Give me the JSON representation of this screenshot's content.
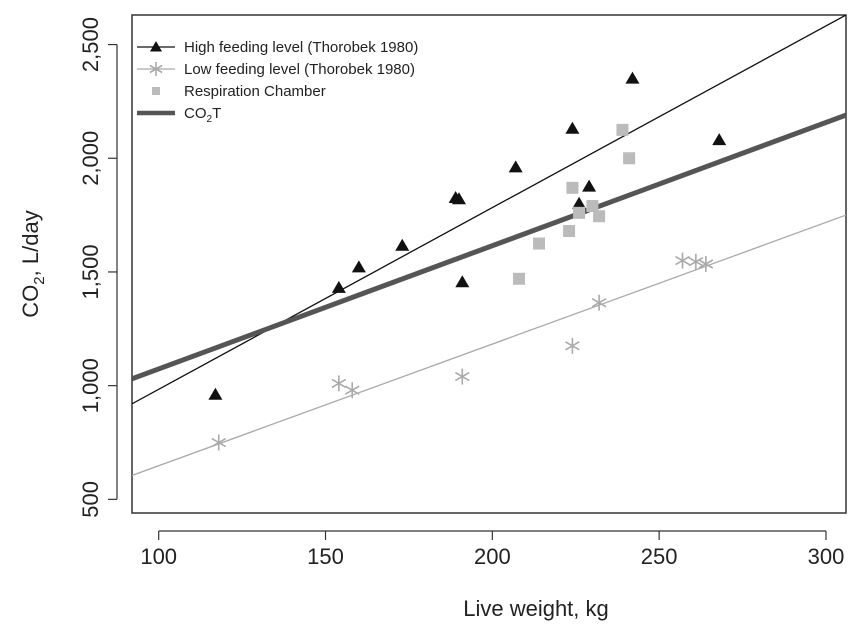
{
  "chart_data": {
    "type": "scatter",
    "title": "",
    "xlabel": "Live weight, kg",
    "ylabel_main": "CO",
    "ylabel_sub": "2",
    "ylabel_rest": ", L/day",
    "xlim": [
      92,
      306
    ],
    "ylim": [
      440,
      2630
    ],
    "x_ticks": [
      100,
      150,
      200,
      250,
      300
    ],
    "x_tick_labels": [
      "100",
      "150",
      "200",
      "250",
      "300"
    ],
    "y_ticks": [
      500,
      1000,
      1500,
      2000,
      2500
    ],
    "y_tick_labels": [
      "500",
      "1,000",
      "1,500",
      "2,000",
      "2,500"
    ],
    "grid": false,
    "legend_position": "top-left",
    "series": [
      {
        "name": "High feeding level (Thorobek 1980)",
        "marker": "triangle",
        "color": "#111111",
        "points": [
          [
            117,
            960
          ],
          [
            154,
            1430
          ],
          [
            160,
            1520
          ],
          [
            173,
            1615
          ],
          [
            189,
            1825
          ],
          [
            190,
            1820
          ],
          [
            191,
            1455
          ],
          [
            207,
            1960
          ],
          [
            224,
            2130
          ],
          [
            226,
            1800
          ],
          [
            229,
            1875
          ],
          [
            242,
            2350
          ],
          [
            268,
            2080
          ]
        ],
        "fit_line": {
          "color": "#111111",
          "endpoints": [
            [
              92,
              920
            ],
            [
              306,
              2630
            ]
          ]
        }
      },
      {
        "name": "Low feeding level (Thorobek 1980)",
        "marker": "asterisk",
        "color": "#aaaaaa",
        "points": [
          [
            118,
            750
          ],
          [
            154,
            1010
          ],
          [
            158,
            980
          ],
          [
            191,
            1040
          ],
          [
            224,
            1175
          ],
          [
            232,
            1365
          ],
          [
            257,
            1550
          ],
          [
            261,
            1545
          ],
          [
            264,
            1535
          ]
        ],
        "fit_line": {
          "color": "#aaaaaa",
          "endpoints": [
            [
              92,
              605
            ],
            [
              306,
              1750
            ]
          ]
        }
      },
      {
        "name": "Respiration Chamber",
        "marker": "square",
        "color": "#bbbbbb",
        "points": [
          [
            208,
            1470
          ],
          [
            214,
            1625
          ],
          [
            223,
            1680
          ],
          [
            224,
            1870
          ],
          [
            226,
            1760
          ],
          [
            230,
            1790
          ],
          [
            232,
            1745
          ],
          [
            239,
            2125
          ],
          [
            241,
            2000
          ]
        ]
      },
      {
        "name_main": "CO",
        "name_sub": "2",
        "name_rest": "T",
        "marker": "line",
        "color": "#555555",
        "fit_line": {
          "color": "#555555",
          "endpoints": [
            [
              92,
              1030
            ],
            [
              306,
              2190
            ]
          ]
        }
      }
    ]
  }
}
